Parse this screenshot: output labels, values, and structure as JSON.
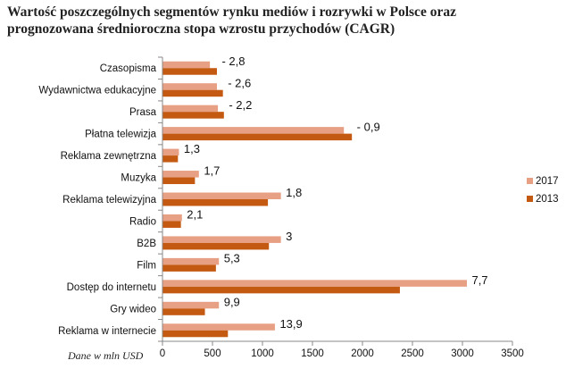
{
  "title_line1": "Wartość poszczególnych segmentów rynku mediów i rozrywki w Polsce oraz",
  "title_line2": "prognozowana średnioroczna stopa wzrostu przychodów (CAGR)",
  "footnote": "Dane w mln USD",
  "chart_data": {
    "type": "bar",
    "orientation": "horizontal",
    "title": "Wartość poszczególnych segmentów rynku mediów i rozrywki w Polsce oraz prognozowana średnioroczna stopa wzrostu przychodów (CAGR)",
    "xlabel": "",
    "ylabel": "",
    "xlim": [
      0,
      3500
    ],
    "xticks": [
      0,
      500,
      1000,
      1500,
      2000,
      2500,
      3000,
      3500
    ],
    "legend_position": "right",
    "categories": [
      "Czasopisma",
      "Wydawnictwa edukacyjne",
      "Prasa",
      "Płatna telewizja",
      "Reklama zewnętrzna",
      "Muzyka",
      "Reklama telewizyjna",
      "Radio",
      "B2B",
      "Film",
      "Dostęp do internetu",
      "Gry wideo",
      "Reklama w internecie"
    ],
    "series": [
      {
        "name": "2017",
        "color": "#e8a084",
        "values": [
          470,
          540,
          550,
          1810,
          160,
          360,
          1180,
          190,
          1180,
          560,
          3040,
          560,
          1120
        ]
      },
      {
        "name": "2013",
        "color": "#c45a12",
        "values": [
          540,
          600,
          610,
          1890,
          150,
          320,
          1050,
          180,
          1060,
          530,
          2370,
          420,
          650
        ]
      }
    ],
    "cagr_labels": [
      "- 2,8",
      "- 2,6",
      "- 2,2",
      "- 0,9",
      "1,3",
      "1,7",
      "1,8",
      "2,1",
      "3",
      "5,3",
      "7,7",
      "9,9",
      "13,9"
    ]
  }
}
